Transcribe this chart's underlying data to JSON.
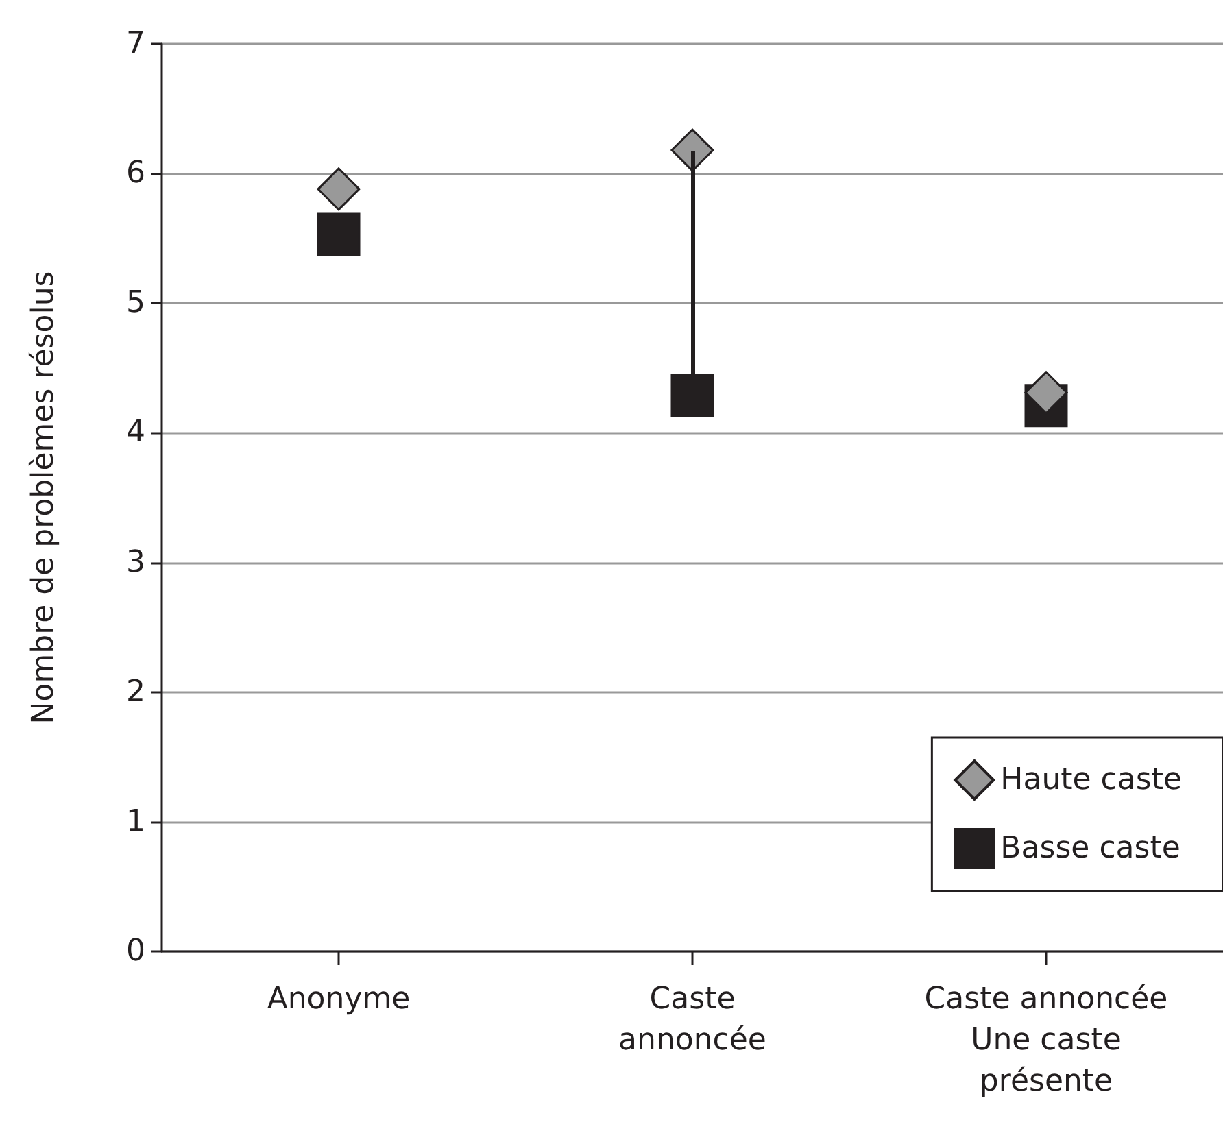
{
  "chart_data": {
    "type": "scatter",
    "ylabel": "Nombre de problèmes résolus",
    "categories": [
      "Anonyme",
      "Caste\nannoncée",
      "Caste annoncée\nUne caste\nprésente"
    ],
    "series": [
      {
        "name": "Haute caste",
        "color": "#999999",
        "marker": "diamond",
        "values": [
          5.88,
          6.18,
          4.31
        ]
      },
      {
        "name": "Basse caste",
        "color": "#231f20",
        "marker": "square",
        "values": [
          5.53,
          4.29,
          4.21
        ]
      }
    ],
    "ylim": [
      0,
      7
    ],
    "yticks": [
      0,
      1,
      2,
      3,
      4,
      5,
      6,
      7
    ],
    "grid": "y",
    "legend": "bottom right"
  }
}
